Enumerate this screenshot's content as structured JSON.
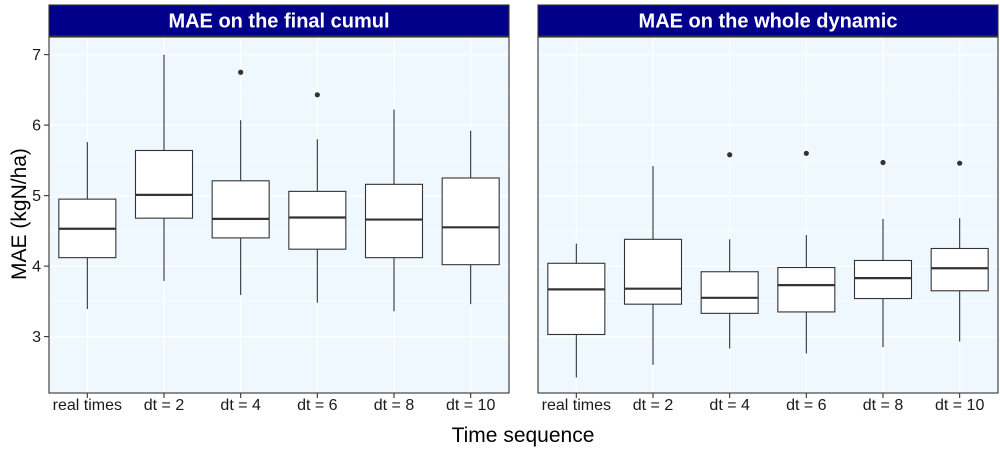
{
  "chart_data": {
    "type": "boxplot",
    "xlabel": "Time sequence",
    "ylabel": "MAE (kgN/ha)",
    "ylim": [
      2.2,
      7.25
    ],
    "yticks": [
      3,
      4,
      5,
      6,
      7
    ],
    "categories": [
      "real times",
      "dt = 2",
      "dt = 4",
      "dt = 6",
      "dt = 8",
      "dt = 10"
    ],
    "grid": true,
    "colors": {
      "strip": "#00008B",
      "panel_bg": "#F0F8FF",
      "grid": "#FFFFFF",
      "box_fill": "#FFFFFF",
      "box_line": "#333333"
    },
    "panels": [
      {
        "title": "MAE on the final cumul",
        "boxes": [
          {
            "min": 3.39,
            "q1": 4.12,
            "median": 4.53,
            "q3": 4.95,
            "max": 5.76,
            "outliers": []
          },
          {
            "min": 3.79,
            "q1": 4.68,
            "median": 5.01,
            "q3": 5.64,
            "max": 7.0,
            "outliers": []
          },
          {
            "min": 3.59,
            "q1": 4.4,
            "median": 4.67,
            "q3": 5.21,
            "max": 6.07,
            "outliers": [
              6.75
            ]
          },
          {
            "min": 3.48,
            "q1": 4.24,
            "median": 4.69,
            "q3": 5.06,
            "max": 5.8,
            "outliers": [
              6.43
            ]
          },
          {
            "min": 3.36,
            "q1": 4.12,
            "median": 4.66,
            "q3": 5.16,
            "max": 6.22,
            "outliers": []
          },
          {
            "min": 3.46,
            "q1": 4.02,
            "median": 4.55,
            "q3": 5.25,
            "max": 5.92,
            "outliers": []
          }
        ]
      },
      {
        "title": "MAE on the whole dynamic",
        "boxes": [
          {
            "min": 2.42,
            "q1": 3.03,
            "median": 3.67,
            "q3": 4.04,
            "max": 4.32,
            "outliers": []
          },
          {
            "min": 2.6,
            "q1": 3.46,
            "median": 3.68,
            "q3": 4.38,
            "max": 5.42,
            "outliers": []
          },
          {
            "min": 2.83,
            "q1": 3.33,
            "median": 3.55,
            "q3": 3.92,
            "max": 4.38,
            "outliers": [
              5.58
            ]
          },
          {
            "min": 2.76,
            "q1": 3.35,
            "median": 3.73,
            "q3": 3.98,
            "max": 4.44,
            "outliers": [
              5.6
            ]
          },
          {
            "min": 2.85,
            "q1": 3.54,
            "median": 3.83,
            "q3": 4.08,
            "max": 4.67,
            "outliers": [
              5.47
            ]
          },
          {
            "min": 2.93,
            "q1": 3.65,
            "median": 3.97,
            "q3": 4.25,
            "max": 4.68,
            "outliers": [
              5.46
            ]
          }
        ]
      }
    ]
  }
}
